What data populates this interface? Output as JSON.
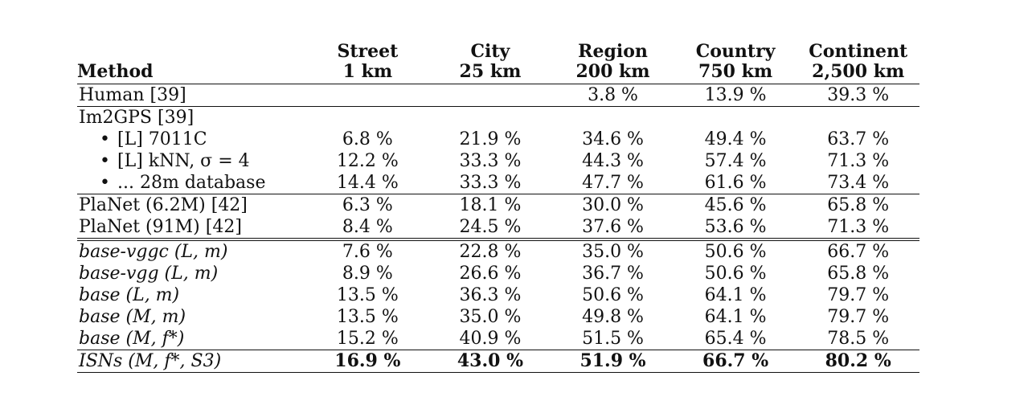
{
  "header": {
    "method": "Method",
    "columns": [
      {
        "name": "Street",
        "dist": "1 km"
      },
      {
        "name": "City",
        "dist": "25 km"
      },
      {
        "name": "Region",
        "dist": "200 km"
      },
      {
        "name": "Country",
        "dist": "750 km"
      },
      {
        "name": "Continent",
        "dist": "2,500 km"
      }
    ]
  },
  "rows": [
    {
      "method": "Human [39]",
      "values": [
        "",
        "",
        "3.8 %",
        "13.9 %",
        "39.3 %"
      ]
    },
    {
      "method": "Im2GPS [39]",
      "values": [
        "",
        "",
        "",
        "",
        ""
      ]
    },
    {
      "method": "[L] 7011C",
      "values": [
        "6.8 %",
        "21.9 %",
        "34.6 %",
        "49.4 %",
        "63.7 %"
      ]
    },
    {
      "method": "[L] kNN, σ = 4",
      "values": [
        "12.2 %",
        "33.3 %",
        "44.3 %",
        "57.4 %",
        "71.3 %"
      ]
    },
    {
      "method": "... 28m database",
      "values": [
        "14.4 %",
        "33.3 %",
        "47.7 %",
        "61.6 %",
        "73.4 %"
      ]
    },
    {
      "method": "PlaNet (6.2M) [42]",
      "values": [
        "6.3 %",
        "18.1 %",
        "30.0 %",
        "45.6 %",
        "65.8 %"
      ]
    },
    {
      "method": "PlaNet (91M) [42]",
      "values": [
        "8.4 %",
        "24.5 %",
        "37.6 %",
        "53.6 %",
        "71.3 %"
      ]
    },
    {
      "method": "base-vggc (L, m)",
      "values": [
        "7.6 %",
        "22.8 %",
        "35.0 %",
        "50.6 %",
        "66.7 %"
      ]
    },
    {
      "method": "base-vgg (L, m)",
      "values": [
        "8.9 %",
        "26.6 %",
        "36.7 %",
        "50.6 %",
        "65.8 %"
      ]
    },
    {
      "method": "base (L, m)",
      "values": [
        "13.5 %",
        "36.3 %",
        "50.6 %",
        "64.1 %",
        "79.7 %"
      ]
    },
    {
      "method": "base (M, m)",
      "values": [
        "13.5 %",
        "35.0 %",
        "49.8 %",
        "64.1 %",
        "79.7 %"
      ]
    },
    {
      "method": "base (M, f*)",
      "values": [
        "15.2 %",
        "40.9 %",
        "51.5 %",
        "65.4 %",
        "78.5 %"
      ]
    },
    {
      "method": "ISNs (M, f*, S3)",
      "values": [
        "16.9 %",
        "43.0 %",
        "51.9 %",
        "66.7 %",
        "80.2 %"
      ]
    }
  ]
}
